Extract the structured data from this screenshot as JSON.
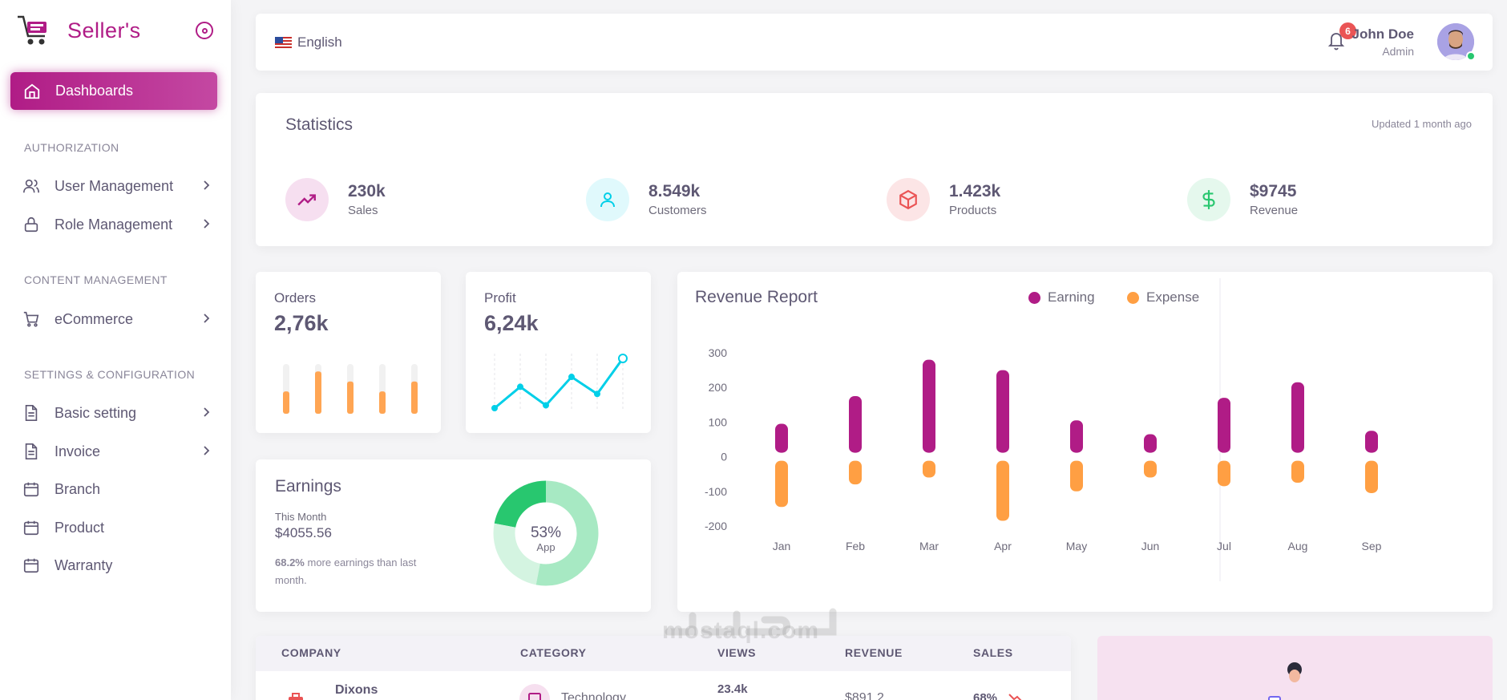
{
  "brand": {
    "name": "Seller's"
  },
  "sidebar": {
    "active": "Dashboards",
    "sections": [
      "AUTHORIZATION",
      "CONTENT MANAGEMENT",
      "SETTINGS & CONFIGURATION"
    ],
    "items": [
      {
        "label": "User Management",
        "icon": "users-icon"
      },
      {
        "label": "Role Management",
        "icon": "lock-icon"
      },
      {
        "label": "eCommerce",
        "icon": "cart-icon"
      },
      {
        "label": "Basic setting",
        "icon": "file-icon"
      },
      {
        "label": "Invoice",
        "icon": "file-icon"
      },
      {
        "label": "Branch",
        "icon": "calendar-icon"
      },
      {
        "label": "Product",
        "icon": "calendar-icon"
      },
      {
        "label": "Warranty",
        "icon": "calendar-icon"
      }
    ]
  },
  "header": {
    "language": "English",
    "notifications": "6",
    "user_name": "John Doe",
    "user_role": "Admin"
  },
  "statistics": {
    "title": "Statistics",
    "updated": "Updated 1 month ago",
    "items": [
      {
        "value": "230k",
        "label": "Sales",
        "color": "#b01c86",
        "bg": "#f6dff0"
      },
      {
        "value": "8.549k",
        "label": "Customers",
        "color": "#00cfe8",
        "bg": "#e0f9fc"
      },
      {
        "value": "1.423k",
        "label": "Products",
        "color": "#ea5455",
        "bg": "#fce5e6"
      },
      {
        "value": "$9745",
        "label": "Revenue",
        "color": "#28c76f",
        "bg": "#e5f8ed"
      }
    ]
  },
  "orders": {
    "title": "Orders",
    "value": "2,76k",
    "bars": [
      0.45,
      0.85,
      0.65,
      0.45,
      0.65
    ]
  },
  "profit": {
    "title": "Profit",
    "value": "6,24k",
    "points": [
      0,
      15,
      2,
      22,
      10,
      35
    ]
  },
  "earnings": {
    "title": "Earnings",
    "period": "This Month",
    "amount": "$4055.56",
    "note_pct": "68.2%",
    "note_text": " more earnings than last month.",
    "donut_label": "53%",
    "donut_sub": "App",
    "segments": [
      53,
      25,
      22
    ]
  },
  "chart_data": {
    "type": "bar",
    "title": "Revenue Report",
    "categories": [
      "Jan",
      "Feb",
      "Mar",
      "Apr",
      "May",
      "Jun",
      "Jul",
      "Aug",
      "Sep"
    ],
    "series": [
      {
        "name": "Earning",
        "color": "#b01c86",
        "values": [
          95,
          175,
          280,
          250,
          105,
          65,
          170,
          215,
          75
        ]
      },
      {
        "name": "Expense",
        "color": "#ff9f43",
        "values": [
          -145,
          -80,
          -60,
          -185,
          -100,
          -60,
          -85,
          -75,
          -105
        ]
      }
    ],
    "yticks": [
      "300",
      "200",
      "100",
      "0",
      "-100",
      "-200"
    ],
    "ylim": [
      -200,
      300
    ],
    "grid": false,
    "legend": "top"
  },
  "table": {
    "headers": [
      "COMPANY",
      "CATEGORY",
      "VIEWS",
      "REVENUE",
      "SALES"
    ],
    "row": {
      "company": "Dixons",
      "category": "Technology",
      "views": "23.4k",
      "revenue": "$891.2",
      "sales": "68%"
    }
  },
  "watermark": "mostaql.com"
}
